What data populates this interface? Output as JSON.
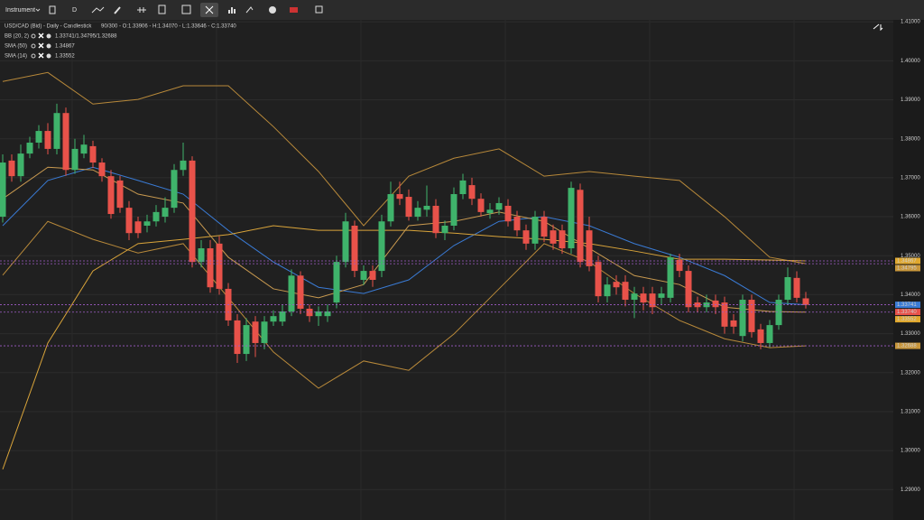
{
  "toolbar": {
    "instrument": "Instrument",
    "period": "D"
  },
  "chart_data": {
    "type": "candlestick",
    "title": "USD/CAD (Bid) - Daily - Candlestick",
    "subtitle": "90/300 - O:1.33906 - H:1.34070 - L:1.33646 - C:1.33740",
    "up_color": "#3fb36b",
    "down_color": "#e8524a",
    "open": [
      1.36,
      1.3744,
      1.3704,
      1.3762,
      1.379,
      1.382,
      1.3774,
      1.3866,
      1.372,
      1.3762,
      1.3781,
      1.3739,
      1.3704,
      1.3693,
      1.3623,
      1.3588,
      1.3577,
      1.3588,
      1.36,
      1.3623,
      1.372,
      1.3744,
      1.3484,
      1.3519,
      1.3531,
      1.3415,
      1.3334,
      1.3248,
      1.3331,
      1.3276,
      1.3331,
      1.3331,
      1.3357,
      1.3449,
      1.3364,
      1.3345,
      1.3345,
      1.338,
      1.3484,
      1.3577,
      1.3438,
      1.3461,
      1.3461,
      1.3588,
      1.3658,
      1.3651,
      1.36,
      1.3618,
      1.3628,
      1.3558,
      1.3577,
      1.3658,
      1.3681,
      1.3646,
      1.3609,
      1.3618,
      1.3628,
      1.36,
      1.3565,
      1.3531,
      1.36,
      1.3565,
      1.3565,
      1.3519,
      1.3669,
      1.3565,
      1.3484,
      1.3396,
      1.3433,
      1.3433,
      1.3387,
      1.3403,
      1.3403,
      1.3392,
      1.3392,
      1.3489,
      1.3461,
      1.338,
      1.3368,
      1.3385,
      1.338,
      1.3334,
      1.3294,
      1.3387,
      1.3311,
      1.3276,
      1.3322,
      1.3387,
      1.3443,
      1.33906
    ],
    "high": [
      1.376,
      1.376,
      1.3785,
      1.3805,
      1.3835,
      1.384,
      1.389,
      1.388,
      1.38,
      1.381,
      1.3795,
      1.375,
      1.372,
      1.3705,
      1.364,
      1.36,
      1.3605,
      1.363,
      1.365,
      1.3735,
      1.379,
      1.3755,
      1.354,
      1.354,
      1.355,
      1.343,
      1.335,
      1.334,
      1.3345,
      1.3345,
      1.336,
      1.3375,
      1.3465,
      1.346,
      1.3375,
      1.337,
      1.3375,
      1.35,
      1.361,
      1.359,
      1.3475,
      1.3475,
      1.3605,
      1.369,
      1.369,
      1.367,
      1.364,
      1.368,
      1.3645,
      1.359,
      1.3675,
      1.371,
      1.37,
      1.366,
      1.3635,
      1.365,
      1.3645,
      1.3615,
      1.358,
      1.3615,
      1.3615,
      1.358,
      1.358,
      1.369,
      1.3685,
      1.36,
      1.35,
      1.3445,
      1.345,
      1.345,
      1.342,
      1.342,
      1.342,
      1.342,
      1.3505,
      1.3505,
      1.3475,
      1.3395,
      1.34,
      1.34,
      1.3395,
      1.335,
      1.34,
      1.34,
      1.3325,
      1.3335,
      1.34,
      1.347,
      1.346,
      1.3407
    ],
    "low": [
      1.3585,
      1.369,
      1.369,
      1.375,
      1.3775,
      1.376,
      1.376,
      1.3705,
      1.371,
      1.375,
      1.3725,
      1.369,
      1.3595,
      1.361,
      1.354,
      1.3545,
      1.356,
      1.3575,
      1.3585,
      1.361,
      1.3705,
      1.347,
      1.347,
      1.3405,
      1.34,
      1.332,
      1.3225,
      1.323,
      1.324,
      1.326,
      1.332,
      1.332,
      1.3345,
      1.335,
      1.333,
      1.332,
      1.333,
      1.3365,
      1.347,
      1.3445,
      1.3425,
      1.342,
      1.3445,
      1.3575,
      1.363,
      1.359,
      1.359,
      1.36,
      1.3545,
      1.354,
      1.3565,
      1.3645,
      1.363,
      1.36,
      1.3595,
      1.3605,
      1.3575,
      1.355,
      1.3515,
      1.3515,
      1.3535,
      1.3515,
      1.3505,
      1.3505,
      1.347,
      1.346,
      1.338,
      1.338,
      1.34,
      1.337,
      1.334,
      1.336,
      1.335,
      1.3375,
      1.338,
      1.3445,
      1.3355,
      1.3355,
      1.3355,
      1.335,
      1.33,
      1.33,
      1.328,
      1.329,
      1.326,
      1.3265,
      1.331,
      1.3375,
      1.338,
      1.33646
    ],
    "close": [
      1.3739,
      1.3704,
      1.3762,
      1.379,
      1.382,
      1.3774,
      1.3866,
      1.372,
      1.3774,
      1.3785,
      1.3739,
      1.3704,
      1.3607,
      1.3623,
      1.3558,
      1.3558,
      1.3588,
      1.3612,
      1.3623,
      1.372,
      1.3744,
      1.3484,
      1.3519,
      1.3419,
      1.3415,
      1.3334,
      1.3248,
      1.3322,
      1.3276,
      1.3331,
      1.3345,
      1.3357,
      1.3449,
      1.3364,
      1.3345,
      1.3357,
      1.3357,
      1.3484,
      1.3588,
      1.3461,
      1.3461,
      1.3438,
      1.3588,
      1.3658,
      1.3646,
      1.36,
      1.3623,
      1.3628,
      1.3558,
      1.3577,
      1.3658,
      1.3693,
      1.3646,
      1.3612,
      1.3618,
      1.3635,
      1.3588,
      1.3565,
      1.3531,
      1.36,
      1.3549,
      1.3531,
      1.3519,
      1.3674,
      1.3484,
      1.3473,
      1.3396,
      1.3426,
      1.3419,
      1.3387,
      1.3403,
      1.338,
      1.3368,
      1.3403,
      1.3496,
      1.3461,
      1.3368,
      1.3368,
      1.338,
      1.3368,
      1.3318,
      1.3318,
      1.3387,
      1.3304,
      1.3276,
      1.3322,
      1.3387,
      1.3445,
      1.3392,
      1.3374
    ],
    "ylim": [
      1.2822,
      1.4105
    ],
    "yticks": [
      {
        "value": 1.41,
        "label": "1.41000"
      },
      {
        "value": 1.4,
        "label": "1.40000"
      },
      {
        "value": 1.39,
        "label": "1.39000"
      },
      {
        "value": 1.38,
        "label": "1.38000"
      },
      {
        "value": 1.37,
        "label": "1.37000"
      },
      {
        "value": 1.36,
        "label": "1.36000"
      },
      {
        "value": 1.35,
        "label": "1.35000"
      },
      {
        "value": 1.34,
        "label": "1.34000"
      },
      {
        "value": 1.33,
        "label": "1.33000"
      },
      {
        "value": 1.32,
        "label": "1.32000"
      },
      {
        "value": 1.31,
        "label": "1.31000"
      },
      {
        "value": 1.3,
        "label": "1.30000"
      },
      {
        "value": 1.29,
        "label": "1.29000"
      }
    ],
    "grid": true,
    "indicators": [
      {
        "name": "BB (20, 2)",
        "readout": "1.33741/1.34795/1.32688",
        "lines": [
          {
            "color": "#b8893a",
            "x": [
              0,
              5,
              10,
              15,
              20,
              25,
              30,
              35,
              40,
              45,
              50,
              55,
              60,
              65,
              70,
              75,
              80,
              85,
              89
            ],
            "values": [
              1.3947,
              1.397,
              1.3889,
              1.3901,
              1.3936,
              1.3936,
              1.3831,
              1.3716,
              1.3577,
              1.3704,
              1.375,
              1.3774,
              1.3704,
              1.3716,
              1.3704,
              1.3693,
              1.36,
              1.3496,
              1.34795
            ]
          },
          {
            "color": "#3a7bd5",
            "x": [
              0,
              5,
              10,
              15,
              20,
              25,
              30,
              35,
              40,
              45,
              50,
              55,
              60,
              65,
              70,
              75,
              80,
              85,
              89
            ],
            "values": [
              1.3577,
              1.3693,
              1.3727,
              1.3693,
              1.3658,
              1.3565,
              1.3484,
              1.3419,
              1.3403,
              1.3438,
              1.3526,
              1.3588,
              1.36,
              1.3577,
              1.3531,
              1.3496,
              1.3449,
              1.338,
              1.33741
            ]
          },
          {
            "color": "#b8893a",
            "x": [
              0,
              5,
              10,
              15,
              20,
              25,
              30,
              35,
              40,
              45,
              50,
              55,
              60,
              65,
              70,
              75,
              80,
              85,
              89
            ],
            "values": [
              1.345,
              1.3588,
              1.3542,
              1.3507,
              1.3531,
              1.3392,
              1.3253,
              1.316,
              1.323,
              1.3206,
              1.3299,
              1.3415,
              1.3531,
              1.3484,
              1.3403,
              1.3334,
              1.3287,
              1.3264,
              1.32688
            ]
          }
        ]
      },
      {
        "name": "SMA (50)",
        "readout": "1.34867",
        "lines": [
          {
            "color": "#d9a43a",
            "x": [
              0,
              5,
              10,
              15,
              20,
              25,
              30,
              35,
              40,
              45,
              50,
              55,
              60,
              65,
              70,
              75,
              80,
              85,
              89
            ],
            "values": [
              1.2952,
              1.3276,
              1.3461,
              1.3531,
              1.3542,
              1.3554,
              1.3577,
              1.3565,
              1.3565,
              1.3565,
              1.3558,
              1.3549,
              1.3542,
              1.3531,
              1.3512,
              1.3491,
              1.3491,
              1.3489,
              1.34867
            ]
          }
        ]
      },
      {
        "name": "SMA (14)",
        "readout": "1.33552",
        "lines": [
          {
            "color": "#c99a50",
            "x": [
              0,
              5,
              10,
              15,
              20,
              25,
              30,
              35,
              40,
              45,
              50,
              55,
              60,
              65,
              70,
              75,
              80,
              85,
              89
            ],
            "values": [
              1.3646,
              1.3727,
              1.372,
              1.3658,
              1.3635,
              1.3496,
              1.3415,
              1.3392,
              1.3426,
              1.3577,
              1.3588,
              1.3612,
              1.3588,
              1.3519,
              1.3449,
              1.3426,
              1.3368,
              1.3357,
              1.33552
            ]
          }
        ]
      }
    ],
    "marker_line_color": "#a05cc8",
    "price_markers": [
      {
        "value": 1.34867,
        "label": "1.34867",
        "color": "#e0a82e"
      },
      {
        "value": 1.34795,
        "label": "1.34795",
        "color": "#c8963a"
      },
      {
        "value": 1.3374,
        "label": "1.33740",
        "color": "#e8524a"
      },
      {
        "value": 1.33741,
        "label": "1.33741",
        "color": "#3a7bd5"
      },
      {
        "value": 1.33552,
        "label": "1.33552",
        "color": "#e0a82e"
      },
      {
        "value": 1.32688,
        "label": "1.32688",
        "color": "#c8963a"
      }
    ]
  }
}
